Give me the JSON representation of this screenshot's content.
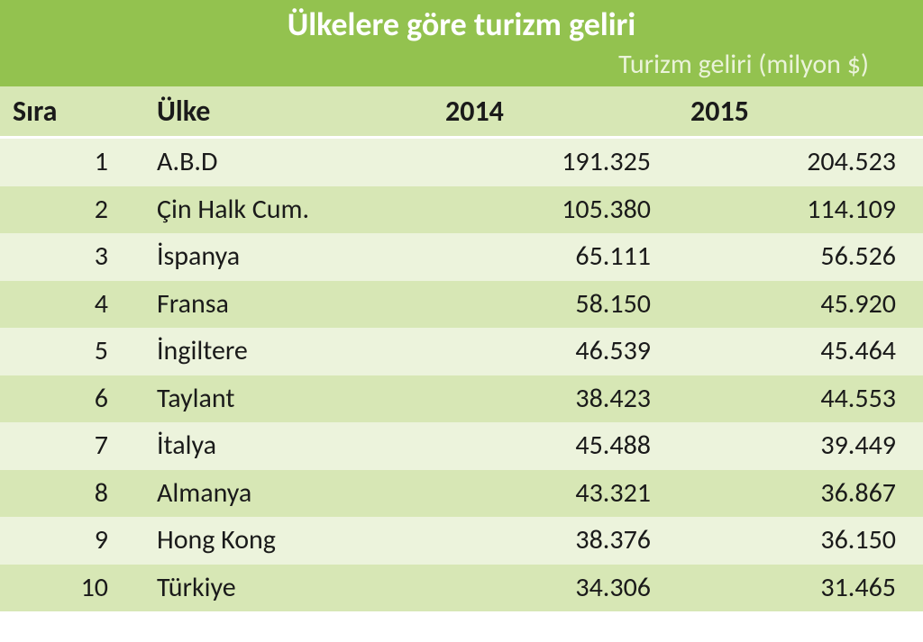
{
  "colors": {
    "header_bg": "#93c24f",
    "colheader_bg": "#d7e7b5",
    "row_odd": "#ecf3dc",
    "row_even": "#d7e7b5",
    "text": "#1a1a1a",
    "subtitle_text": "#eaf3d9"
  },
  "table": {
    "title": "Ülkelere göre turizm geliri",
    "subtitle": "Turizm geliri (milyon $)",
    "columns": {
      "rank": "Sıra",
      "country": "Ülke",
      "y2014": "2014",
      "y2015": "2015"
    },
    "rows": [
      {
        "rank": "1",
        "country": "A.B.D",
        "y2014": "191.325",
        "y2015": "204.523"
      },
      {
        "rank": "2",
        "country": "Çin Halk Cum.",
        "y2014": "105.380",
        "y2015": "114.109"
      },
      {
        "rank": "3",
        "country": "İspanya",
        "y2014": "65.111",
        "y2015": "56.526"
      },
      {
        "rank": "4",
        "country": "Fransa",
        "y2014": "58.150",
        "y2015": "45.920"
      },
      {
        "rank": "5",
        "country": "İngiltere",
        "y2014": "46.539",
        "y2015": "45.464"
      },
      {
        "rank": "6",
        "country": "Taylant",
        "y2014": "38.423",
        "y2015": "44.553"
      },
      {
        "rank": "7",
        "country": "İtalya",
        "y2014": "45.488",
        "y2015": "39.449"
      },
      {
        "rank": "8",
        "country": "Almanya",
        "y2014": "43.321",
        "y2015": "36.867"
      },
      {
        "rank": "9",
        "country": "Hong Kong",
        "y2014": "38.376",
        "y2015": "36.150"
      },
      {
        "rank": "10",
        "country": "Türkiye",
        "y2014": "34.306",
        "y2015": "31.465"
      }
    ]
  }
}
